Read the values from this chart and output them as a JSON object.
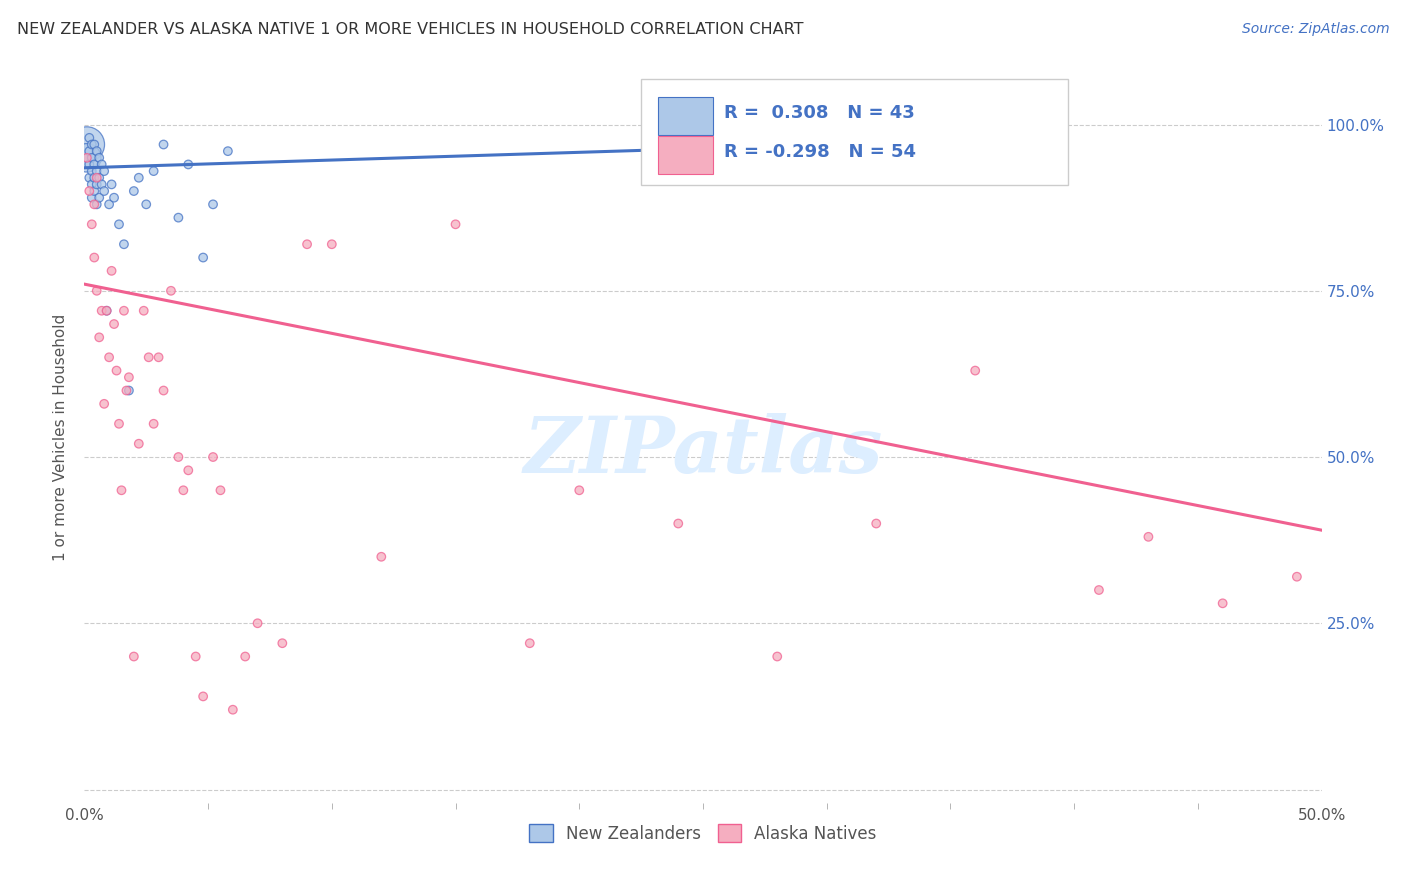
{
  "title": "NEW ZEALANDER VS ALASKA NATIVE 1 OR MORE VEHICLES IN HOUSEHOLD CORRELATION CHART",
  "source": "Source: ZipAtlas.com",
  "ylabel": "1 or more Vehicles in Household",
  "xlim": [
    0.0,
    0.5
  ],
  "ylim": [
    -0.02,
    1.08
  ],
  "yticks": [
    0.0,
    0.25,
    0.5,
    0.75,
    1.0
  ],
  "ytick_labels": [
    "",
    "25.0%",
    "50.0%",
    "75.0%",
    "100.0%"
  ],
  "nz_R": 0.308,
  "nz_N": 43,
  "ak_R": -0.298,
  "ak_N": 54,
  "nz_color": "#adc8e8",
  "ak_color": "#f5aec0",
  "nz_line_color": "#4472c4",
  "ak_line_color": "#f06090",
  "watermark_text": "ZIPatlas",
  "watermark_color": "#ddeeff",
  "background_color": "#ffffff",
  "legend_text_color": "#4472c4",
  "nz_scatter_x": [
    0.001,
    0.001,
    0.002,
    0.002,
    0.002,
    0.002,
    0.003,
    0.003,
    0.003,
    0.003,
    0.003,
    0.004,
    0.004,
    0.004,
    0.004,
    0.005,
    0.005,
    0.005,
    0.005,
    0.006,
    0.006,
    0.006,
    0.007,
    0.007,
    0.008,
    0.008,
    0.009,
    0.01,
    0.011,
    0.012,
    0.014,
    0.016,
    0.018,
    0.02,
    0.022,
    0.025,
    0.028,
    0.032,
    0.038,
    0.042,
    0.048,
    0.052,
    0.058
  ],
  "nz_scatter_y": [
    0.97,
    0.95,
    0.98,
    0.96,
    0.94,
    0.92,
    0.97,
    0.95,
    0.93,
    0.91,
    0.89,
    0.97,
    0.94,
    0.92,
    0.9,
    0.96,
    0.93,
    0.91,
    0.88,
    0.95,
    0.92,
    0.89,
    0.94,
    0.91,
    0.93,
    0.9,
    0.72,
    0.88,
    0.91,
    0.89,
    0.85,
    0.82,
    0.6,
    0.9,
    0.92,
    0.88,
    0.93,
    0.97,
    0.86,
    0.94,
    0.8,
    0.88,
    0.96
  ],
  "nz_scatter_size": [
    40,
    40,
    40,
    40,
    40,
    40,
    40,
    40,
    40,
    40,
    40,
    40,
    40,
    40,
    40,
    40,
    40,
    40,
    40,
    40,
    40,
    40,
    40,
    40,
    40,
    40,
    40,
    40,
    40,
    40,
    40,
    40,
    40,
    40,
    40,
    40,
    40,
    40,
    40,
    40,
    40,
    40,
    40
  ],
  "nz_big_idx": [
    0,
    1
  ],
  "nz_big_size": [
    600,
    400
  ],
  "ak_scatter_x": [
    0.001,
    0.002,
    0.003,
    0.004,
    0.004,
    0.005,
    0.005,
    0.006,
    0.007,
    0.008,
    0.009,
    0.01,
    0.011,
    0.012,
    0.013,
    0.014,
    0.015,
    0.016,
    0.017,
    0.018,
    0.02,
    0.022,
    0.024,
    0.026,
    0.028,
    0.03,
    0.032,
    0.035,
    0.038,
    0.04,
    0.042,
    0.045,
    0.048,
    0.052,
    0.055,
    0.06,
    0.065,
    0.07,
    0.08,
    0.09,
    0.1,
    0.12,
    0.15,
    0.18,
    0.2,
    0.24,
    0.28,
    0.32,
    0.36,
    0.39,
    0.41,
    0.43,
    0.46,
    0.49
  ],
  "ak_scatter_y": [
    0.95,
    0.9,
    0.85,
    0.8,
    0.88,
    0.75,
    0.92,
    0.68,
    0.72,
    0.58,
    0.72,
    0.65,
    0.78,
    0.7,
    0.63,
    0.55,
    0.45,
    0.72,
    0.6,
    0.62,
    0.2,
    0.52,
    0.72,
    0.65,
    0.55,
    0.65,
    0.6,
    0.75,
    0.5,
    0.45,
    0.48,
    0.2,
    0.14,
    0.5,
    0.45,
    0.12,
    0.2,
    0.25,
    0.22,
    0.82,
    0.82,
    0.35,
    0.85,
    0.22,
    0.45,
    0.4,
    0.2,
    0.4,
    0.63,
    1.0,
    0.3,
    0.38,
    0.28,
    0.32
  ],
  "nz_line_x": [
    0.0,
    0.37
  ],
  "nz_line_y": [
    0.935,
    0.978
  ],
  "ak_line_x": [
    0.0,
    0.5
  ],
  "ak_line_y": [
    0.76,
    0.39
  ]
}
